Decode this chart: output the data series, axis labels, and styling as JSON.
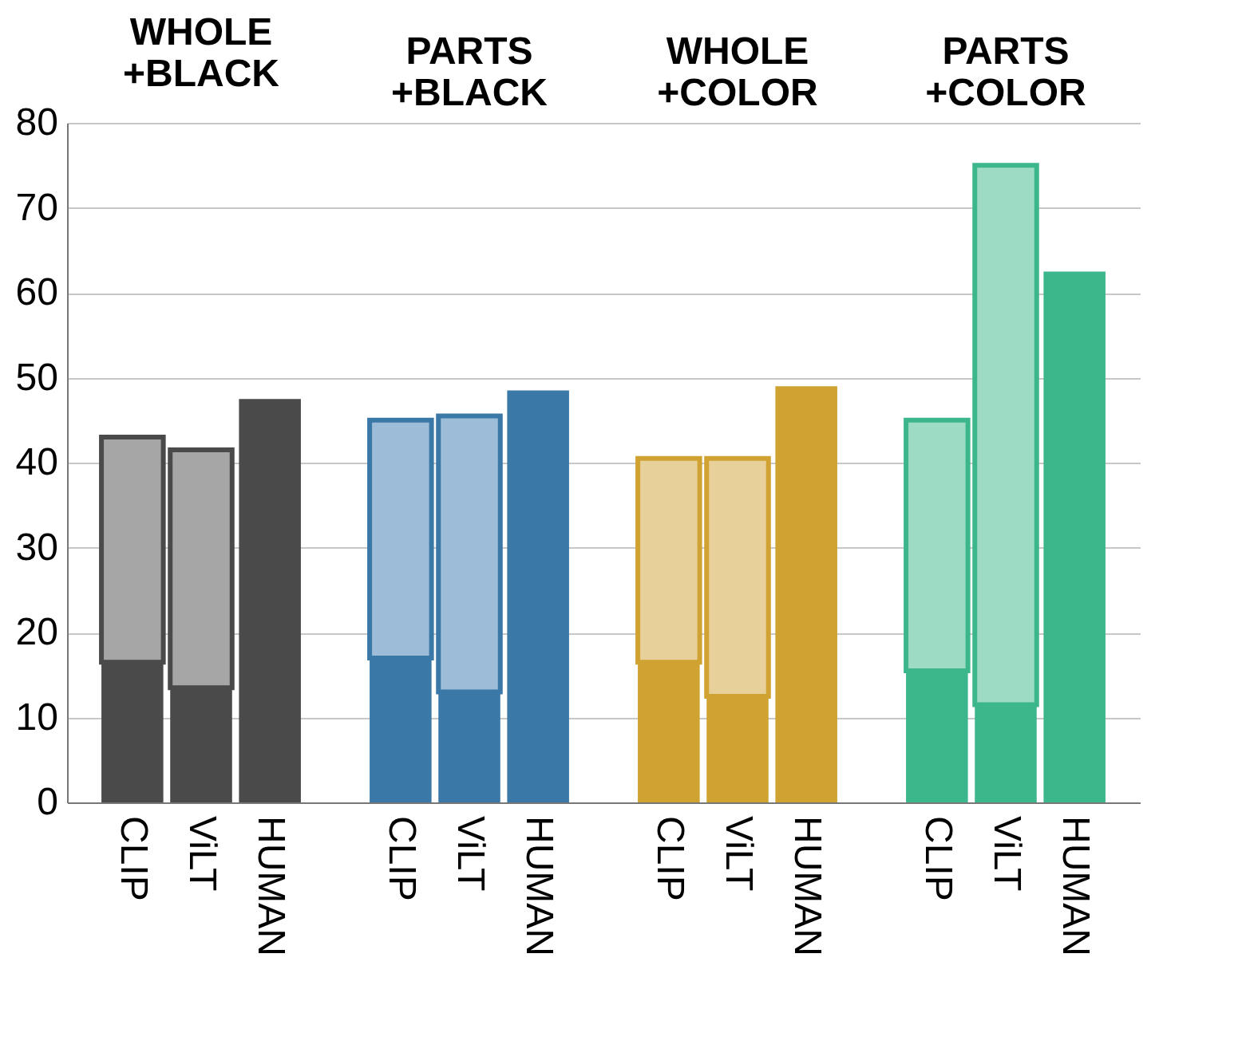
{
  "chart_data": [
    {
      "type": "bar",
      "title": "WHOLE +BLACK",
      "categories": [
        "CLIP",
        "ViLT",
        "HUMAN"
      ],
      "stacked": true,
      "ylim": [
        0,
        80
      ],
      "yticks": [
        0,
        10,
        20,
        30,
        40,
        50,
        60,
        70,
        80
      ],
      "grid": "y",
      "series": [
        {
          "color": "#4a4a4a",
          "values": [
            16.5,
            13.5,
            47.5
          ]
        },
        {
          "color": "#a6a6a6",
          "values": [
            26.5,
            28,
            null
          ]
        }
      ]
    },
    {
      "type": "bar",
      "title": "PARTS +BLACK",
      "categories": [
        "CLIP",
        "ViLT",
        "HUMAN"
      ],
      "stacked": true,
      "ylim": [
        0,
        80
      ],
      "yticks": [
        0,
        10,
        20,
        30,
        40,
        50,
        60,
        70,
        80
      ],
      "grid": "y",
      "tick_labels": "x",
      "series": [
        {
          "color": "#3a78a8",
          "values": [
            17,
            13,
            48.5
          ]
        },
        {
          "color": "#9dbcd8",
          "values": [
            28,
            32.5,
            null
          ]
        }
      ]
    },
    {
      "type": "bar",
      "title": "WHOLE +COLOR",
      "categories": [
        "CLIP",
        "ViLT",
        "HUMAN"
      ],
      "stacked": true,
      "ylim": [
        0,
        80
      ],
      "yticks": [
        0,
        10,
        20,
        30,
        40,
        50,
        60,
        70,
        80
      ],
      "grid": "y",
      "tick_labels": "x",
      "series": [
        {
          "color": "#d0a232",
          "values": [
            16.5,
            12.5,
            49
          ]
        },
        {
          "color": "#e8d09a",
          "values": [
            24,
            28,
            null
          ]
        }
      ]
    },
    {
      "type": "bar",
      "title": "PARTS +COLOR",
      "categories": [
        "CLIP",
        "ViLT",
        "HUMAN"
      ],
      "stacked": true,
      "ylim": [
        0,
        80
      ],
      "yticks": [
        0,
        10,
        20,
        30,
        40,
        50,
        60,
        70,
        80
      ],
      "grid": "y",
      "tick_labels": "x",
      "series": [
        {
          "color": "#3cb68b",
          "values": [
            15.5,
            11.5,
            62.5
          ]
        },
        {
          "color": "#9edbc4",
          "values": [
            29.5,
            63.5,
            null
          ]
        }
      ]
    }
  ]
}
